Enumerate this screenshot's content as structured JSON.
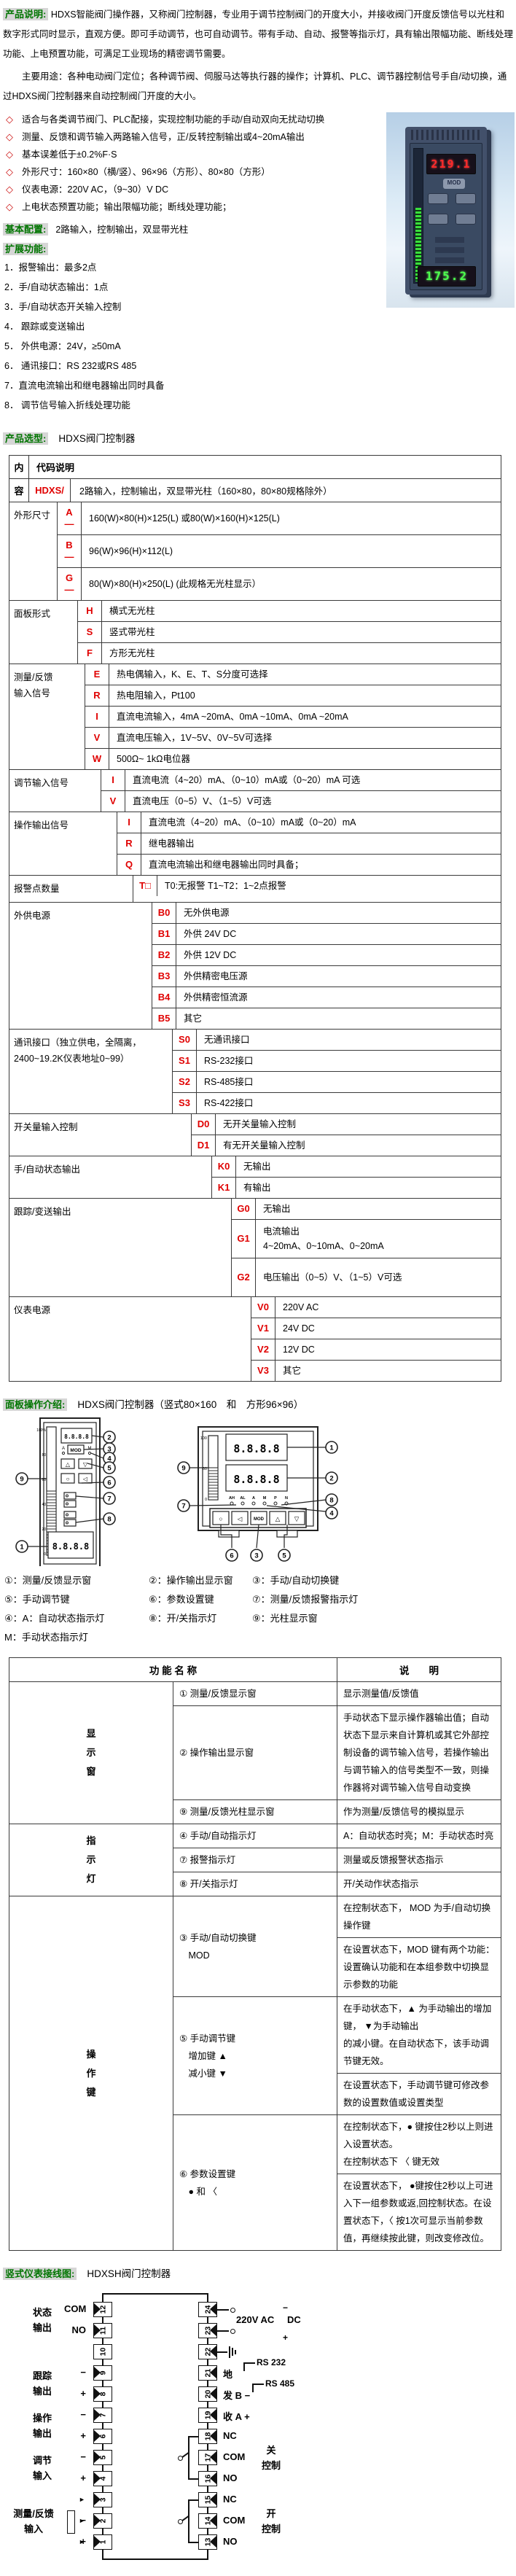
{
  "intro": {
    "label": "产品说明:",
    "text": "HDXS智能阀门操作器，又称阀门控制器，专业用于调节控制阀门的开度大小，并接收阀门开度反馈信号以光柱和数字形式同时显示，直观方便。即可手动调节，也可自动调节。带有手动、自动、报警等指示灯，具有输出限幅功能、断线处理功能、上电预置功能，可满足工业现场的精密调节需要。",
    "usage": "主要用途：各种电动阀门定位；各种调节阀、伺服马达等执行器的操作；计算机、PLC、调节器控制信号手自/动切换，通过HDXS阀门控制器来自动控制阀门开度的大小。",
    "bullets": [
      "适合与各类调节阀门、PLC配接，实现控制功能的手动/自动双向无扰动切换",
      "测量、反馈和调节输入两路输入信号，正/反转控制输出或4~20mA输出",
      "基本误差低于±0.2%F·S",
      "外形尺寸：160×80（横/竖）、96×96（方形）、80×80（方形）",
      "仪表电源：220V AC，（9~30）V DC",
      "上电状态预置功能；输出限幅功能；断线处理功能；"
    ]
  },
  "photo": {
    "top_value": "219.1",
    "bottom_value": "175.2",
    "mod": "MOD"
  },
  "basic": {
    "label": "基本配置:",
    "text": "2路输入，控制输出，双显带光柱"
  },
  "extended": {
    "label": "扩展功能:",
    "items": [
      "1．报警输出：最多2点",
      "2．手/自动状态输出：1点",
      "3．手/自动状态开关输入控制",
      "4． 跟踪或变送输出",
      "5． 外供电源：24V，≥50mA",
      "6． 通讯接口：RS 232或RS 485",
      "7．直流电流输出和继电器输出同时具备",
      "8． 调节信号输入折线处理功能"
    ]
  },
  "selection": {
    "label": "产品选型:",
    "title": "HDXS阀门控制器",
    "head_col_top": "内",
    "head_col_bottom": "容",
    "head_right": "代码说明",
    "model_code": "HDXS/",
    "model_desc": "2路输入，控制输出，双显带光柱（160×80，80×80规格除外）",
    "groups": [
      {
        "label": "外形尺寸",
        "options": [
          {
            "code": "A\n—",
            "desc": "160(W)×80(H)×125(L) 或80(W)×160(H)×125(L)",
            "h": 44
          },
          {
            "code": "B\n—",
            "desc": "96(W)×96(H)×112(L)",
            "h": 44
          },
          {
            "code": "G\n—",
            "desc": "80(W)×80(H)×250(L) (此规格无光柱显示）",
            "h": 44
          }
        ]
      },
      {
        "label": "面板形式",
        "options": [
          {
            "code": "H",
            "desc": "横式无光柱"
          },
          {
            "code": "S",
            "desc": "竖式带光柱"
          },
          {
            "code": "F",
            "desc": "方形无光柱"
          }
        ]
      },
      {
        "label": "测量/反馈\n输入信号",
        "options": [
          {
            "code": "E",
            "desc": "热电偶输入，K、E、T、S分度可选择"
          },
          {
            "code": "R",
            "desc": "热电阻输入，Pt100"
          },
          {
            "code": "I",
            "desc": "直流电流输入，4mA ~20mA、0mA ~10mA、0mA ~20mA"
          },
          {
            "code": "V",
            "desc": "直流电压输入，1V~5V、0V~5V可选择"
          },
          {
            "code": "W",
            "desc": "500Ω~ 1kΩ电位器"
          }
        ]
      },
      {
        "label": "调节输入信号",
        "options": [
          {
            "code": "I",
            "desc": "直流电流（4~20）mA、（0~10）mA或（0~20）mA 可选"
          },
          {
            "code": "V",
            "desc": "直流电压（0~5）V、（1~5）V可选"
          }
        ]
      },
      {
        "label": "操作输出信号",
        "options": [
          {
            "code": "I",
            "desc": "直流电流（4~20）mA、（0~10）mA或（0~20）mA"
          },
          {
            "code": "R",
            "desc": "继电器输出"
          },
          {
            "code": "Q",
            "desc": "直流电流输出和继电器输出同时具备；"
          }
        ]
      },
      {
        "label": "报警点数量",
        "options": [
          {
            "code": "T□",
            "desc": "T0:无报警  T1~T2：1~2点报警"
          }
        ]
      },
      {
        "label": "外供电源",
        "options": [
          {
            "code": "B0",
            "desc": "无外供电源"
          },
          {
            "code": "B1",
            "desc": "外供 24V DC"
          },
          {
            "code": "B2",
            "desc": "外供 12V DC"
          },
          {
            "code": "B3",
            "desc": "外供精密电压源"
          },
          {
            "code": "B4",
            "desc": "外供精密恒流源"
          },
          {
            "code": "B5",
            "desc": "其它"
          }
        ]
      },
      {
        "label": "通讯接口（独立供电，全隔离，2400~19.2K仪表地址0~99）",
        "options": [
          {
            "code": "S0",
            "desc": "无通讯接口"
          },
          {
            "code": "S1",
            "desc": "RS-232接口"
          },
          {
            "code": "S2",
            "desc": "RS-485接口"
          },
          {
            "code": "S3",
            "desc": "RS-422接口"
          }
        ]
      },
      {
        "label": "开关量输入控制",
        "options": [
          {
            "code": "D0",
            "desc": "无开关量输入控制"
          },
          {
            "code": "D1",
            "desc": "有无开关量输入控制"
          }
        ]
      },
      {
        "label": "手/自动状态输出",
        "options": [
          {
            "code": "K0",
            "desc": "无输出"
          },
          {
            "code": "K1",
            "desc": "有输出"
          }
        ]
      },
      {
        "label": "跟踪/变送输出",
        "options": [
          {
            "code": "G0",
            "desc": "无输出"
          },
          {
            "code": "G1",
            "desc": "电流输出\n4~20mA、0~10mA、0~20mA",
            "h": 52
          },
          {
            "code": "G2",
            "desc": "电压输出（0~5）V、（1~5）V可选",
            "h": 52
          }
        ]
      },
      {
        "label": "仪表电源",
        "options": [
          {
            "code": "V0",
            "desc": "220V AC"
          },
          {
            "code": "V1",
            "desc": "24V DC"
          },
          {
            "code": "V2",
            "desc": "12V DC"
          },
          {
            "code": "V3",
            "desc": "其它"
          }
        ]
      }
    ]
  },
  "panel": {
    "label": "面板操作介绍:",
    "title": "HDXS阀门控制器（竖式80×160　和　方形96×96）",
    "segments": "8.8.8.8",
    "mod": "MOD",
    "leds": [
      "AH",
      "AL",
      "A",
      "M",
      "P",
      "N"
    ],
    "buttons": [
      "○",
      "◁",
      "MOD",
      "△",
      "▽"
    ],
    "left_scale": [
      "100%",
      "80",
      "60",
      "40",
      "20",
      "0"
    ],
    "right_scale": [
      "100",
      "60",
      "0"
    ],
    "callouts": {
      "l_right": [
        "2",
        "3",
        "4",
        "5",
        "6",
        "7",
        "8"
      ],
      "l_left": [
        "9",
        "1"
      ],
      "r_right": [
        "1",
        "2",
        "8",
        "4"
      ],
      "r_left": [
        "9",
        "7"
      ],
      "r_bottom": [
        "6",
        "3",
        "5"
      ]
    },
    "legend": [
      "①：测量/反馈显示窗",
      "②：操作输出显示窗",
      "③：手动/自动切换键",
      "⑤：手动调节键",
      "⑥：参数设置键",
      "⑦：测量/反馈报警指示灯",
      "④：A：自动状态指示灯",
      "⑧：开/关指示灯",
      "⑨：光柱显示窗",
      "M：手动状态指示灯"
    ]
  },
  "func": {
    "header_name": "功 能 名 称",
    "header_desc": "说　　明",
    "groups": [
      {
        "group": "显\n示\n窗",
        "rows": [
          {
            "name": "① 测量/反馈显示窗",
            "descs": [
              "显示测量值/反馈值"
            ]
          },
          {
            "name": "② 操作输出显示窗",
            "descs": [
              "手动状态下显示操作器输出值；自动状态下显示来自计算机或其它外部控制设备的调节输入信号，若操作输出与调节输入的信号类型不一致，则操作器将对调节输入信号自动变换"
            ]
          },
          {
            "name": "⑨ 测量/反馈光柱显示窗",
            "descs": [
              "作为测量/反馈信号的模拟显示"
            ]
          }
        ]
      },
      {
        "group": "指\n示\n灯",
        "rows": [
          {
            "name": "④ 手动/自动指示灯",
            "descs": [
              "A：自动状态时亮；M：手动状态时亮"
            ]
          },
          {
            "name": "⑦ 报警指示灯",
            "descs": [
              "测量或反馈报警状态指示"
            ]
          },
          {
            "name": "⑧ 开/关指示灯",
            "descs": [
              "开/关动作状态指示"
            ]
          }
        ]
      },
      {
        "group": "操\n作\n键",
        "rows": [
          {
            "name": "③ 手动/自动切换键\n　MOD",
            "descs": [
              "在控制状态下， MOD 为手/自动切换操作键",
              "在设置状态下，MOD 键有两个功能：\n设置确认功能和在本组参数中切换显示参数的功能"
            ]
          },
          {
            "name": "⑤ 手动调节键\n　增加键 ▲\n　减小键 ▼",
            "descs": [
              "在手动状态下，▲ 为手动输出的增加键， ▼为手动输出\n的减小键。在自动状态下，该手动调节键无效。",
              "在设置状态下，手动调节键可修改参数的设置数值或设置类型"
            ]
          },
          {
            "name": "⑥ 参数设置键\n　● 和 〈",
            "descs": [
              "在控制状态下，● 键按住2秒以上则进入设置状态。\n在控制状态下 〈 键无效",
              "在设置状态下， ●键按住2秒以上可进入下一组参数或返,回控制状态。在设置状态下，〈 按1次可显示当前参数值，再继续按此键，则改变修改位。"
            ]
          }
        ]
      }
    ]
  },
  "wiring": {
    "label": "竖式仪表接线图:",
    "title": "HDXSH阀门控制器",
    "left_groups": [
      {
        "label": "状态\n输出",
        "terms": [
          {
            "n": "12",
            "sign": "COM"
          },
          {
            "n": "11",
            "sign": "NO"
          }
        ]
      },
      {
        "label": "",
        "terms": [
          {
            "n": "10",
            "sign": ""
          }
        ]
      },
      {
        "label": "跟踪\n输出",
        "terms": [
          {
            "n": "9",
            "sign": "−"
          },
          {
            "n": "8",
            "sign": "+"
          }
        ]
      },
      {
        "label": "操作\n输出",
        "terms": [
          {
            "n": "7",
            "sign": "−"
          },
          {
            "n": "6",
            "sign": "+"
          }
        ]
      },
      {
        "label": "调节\n输入",
        "terms": [
          {
            "n": "5",
            "sign": "−"
          },
          {
            "n": "4",
            "sign": "+"
          }
        ]
      },
      {
        "label": "测量/反馈\n输入",
        "terms": [
          {
            "n": "3",
            "sign": ""
          },
          {
            "n": "2",
            "sign": "−"
          },
          {
            "n": "1",
            "sign": "+"
          }
        ]
      }
    ],
    "right_terms": [
      "24",
      "23",
      "22",
      "21",
      "20",
      "19",
      "18",
      "17",
      "16",
      "15",
      "14",
      "13"
    ],
    "right_labels": {
      "power": "220V AC",
      "power_minus": "−",
      "power_dc": "DC",
      "power_plus": "+",
      "rs232": "RS 232",
      "rs485": "RS 485",
      "t21": "地",
      "t20": "发  B −",
      "t19": "收  A +",
      "t18": "NC",
      "t17": "COM",
      "t16": "NO",
      "t15": "NC",
      "t14": "COM",
      "t13": "NO",
      "close_ctrl": "关\n控制",
      "open_ctrl": "开\n控制"
    }
  }
}
